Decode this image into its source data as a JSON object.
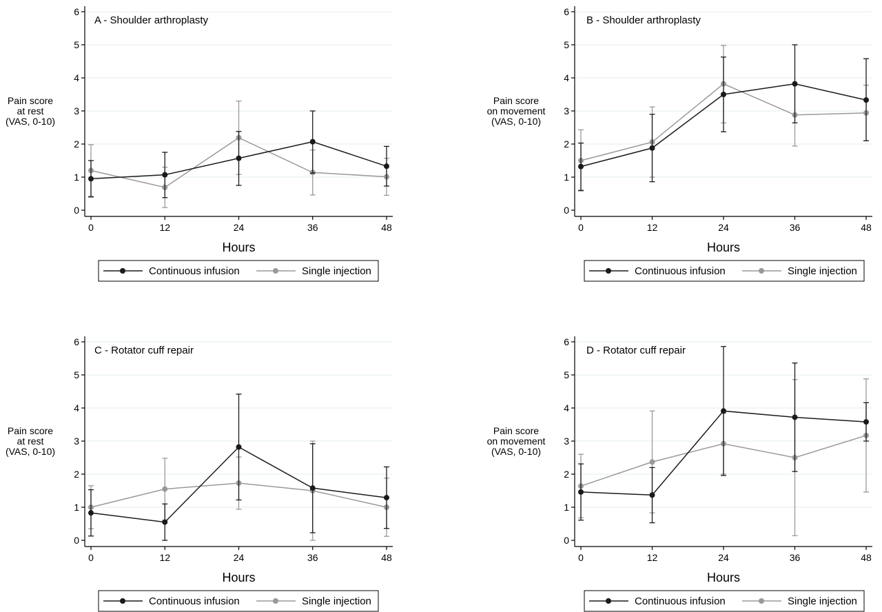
{
  "chart_data": [
    {
      "type": "line",
      "title": "A - Shoulder arthroplasty",
      "ylabel": [
        "Pain score",
        "at rest",
        "(VAS, 0-10)"
      ],
      "xlabel": "Hours",
      "x": [
        0,
        12,
        24,
        36,
        48
      ],
      "ylim": [
        0,
        6
      ],
      "yticks": [
        0,
        1,
        2,
        3,
        4,
        5,
        6
      ],
      "xticks": [
        0,
        12,
        24,
        36,
        48
      ],
      "grid": true,
      "legend_position": "bottom",
      "series": [
        {
          "name": "Continuous infusion",
          "color": "#1a1a1a",
          "values": [
            0.95,
            1.07,
            1.57,
            2.07,
            1.33
          ],
          "lower": [
            0.4,
            0.38,
            0.75,
            1.12,
            0.73
          ],
          "upper": [
            1.5,
            1.75,
            2.38,
            3.0,
            1.93
          ]
        },
        {
          "name": "Single injection",
          "color": "#999999",
          "values": [
            1.2,
            0.69,
            2.19,
            1.14,
            1.01
          ],
          "lower": [
            0.42,
            0.08,
            1.08,
            0.46,
            0.45
          ],
          "upper": [
            1.98,
            1.3,
            3.3,
            1.82,
            1.57
          ]
        }
      ]
    },
    {
      "type": "line",
      "title": "B - Shoulder arthroplasty",
      "ylabel": [
        "Pain score",
        "on movement",
        "(VAS, 0-10)"
      ],
      "xlabel": "Hours",
      "x": [
        0,
        12,
        24,
        36,
        48
      ],
      "ylim": [
        0,
        6
      ],
      "yticks": [
        0,
        1,
        2,
        3,
        4,
        5,
        6
      ],
      "xticks": [
        0,
        12,
        24,
        36,
        48
      ],
      "grid": true,
      "legend_position": "bottom",
      "series": [
        {
          "name": "Continuous infusion",
          "color": "#1a1a1a",
          "values": [
            1.32,
            1.88,
            3.5,
            3.82,
            3.33
          ],
          "lower": [
            0.6,
            0.86,
            2.37,
            2.64,
            2.1
          ],
          "upper": [
            2.03,
            2.9,
            4.63,
            5.0,
            4.58
          ]
        },
        {
          "name": "Single injection",
          "color": "#999999",
          "values": [
            1.5,
            2.06,
            3.82,
            2.88,
            2.94
          ],
          "lower": [
            0.58,
            1.0,
            2.64,
            1.94,
            2.1
          ],
          "upper": [
            2.43,
            3.12,
            4.98,
            3.82,
            3.78
          ]
        }
      ]
    },
    {
      "type": "line",
      "title": "C - Rotator cuff repair",
      "ylabel": [
        "Pain score",
        "at rest",
        "(VAS, 0-10)"
      ],
      "xlabel": "Hours",
      "x": [
        0,
        12,
        24,
        36,
        48
      ],
      "ylim": [
        0,
        6
      ],
      "yticks": [
        0,
        1,
        2,
        3,
        4,
        5,
        6
      ],
      "xticks": [
        0,
        12,
        24,
        36,
        48
      ],
      "grid": true,
      "legend_position": "bottom",
      "series": [
        {
          "name": "Continuous infusion",
          "color": "#1a1a1a",
          "values": [
            0.83,
            0.55,
            2.82,
            1.58,
            1.29
          ],
          "lower": [
            0.13,
            0.0,
            1.22,
            0.23,
            0.36
          ],
          "upper": [
            1.53,
            1.1,
            4.42,
            2.92,
            2.22
          ]
        },
        {
          "name": "Single injection",
          "color": "#999999",
          "values": [
            1.0,
            1.55,
            1.73,
            1.5,
            1.0
          ],
          "lower": [
            0.35,
            0.61,
            0.94,
            0.0,
            0.12
          ],
          "upper": [
            1.65,
            2.48,
            2.52,
            3.0,
            1.88
          ]
        }
      ]
    },
    {
      "type": "line",
      "title": "D - Rotator cuff repair",
      "ylabel": [
        "Pain score",
        "on movement",
        "(VAS, 0-10)"
      ],
      "xlabel": "Hours",
      "x": [
        0,
        12,
        24,
        36,
        48
      ],
      "ylim": [
        0,
        6
      ],
      "yticks": [
        0,
        1,
        2,
        3,
        4,
        5,
        6
      ],
      "xticks": [
        0,
        12,
        24,
        36,
        48
      ],
      "grid": true,
      "legend_position": "bottom",
      "series": [
        {
          "name": "Continuous infusion",
          "color": "#1a1a1a",
          "values": [
            1.46,
            1.37,
            3.91,
            3.72,
            3.58
          ],
          "lower": [
            0.61,
            0.53,
            1.96,
            2.08,
            3.0
          ],
          "upper": [
            2.31,
            2.2,
            5.86,
            5.36,
            4.16
          ]
        },
        {
          "name": "Single injection",
          "color": "#999999",
          "values": [
            1.64,
            2.37,
            2.92,
            2.5,
            3.17
          ],
          "lower": [
            0.68,
            0.83,
            2.0,
            0.14,
            1.46
          ],
          "upper": [
            2.6,
            3.91,
            3.84,
            4.86,
            4.88
          ]
        }
      ]
    }
  ]
}
